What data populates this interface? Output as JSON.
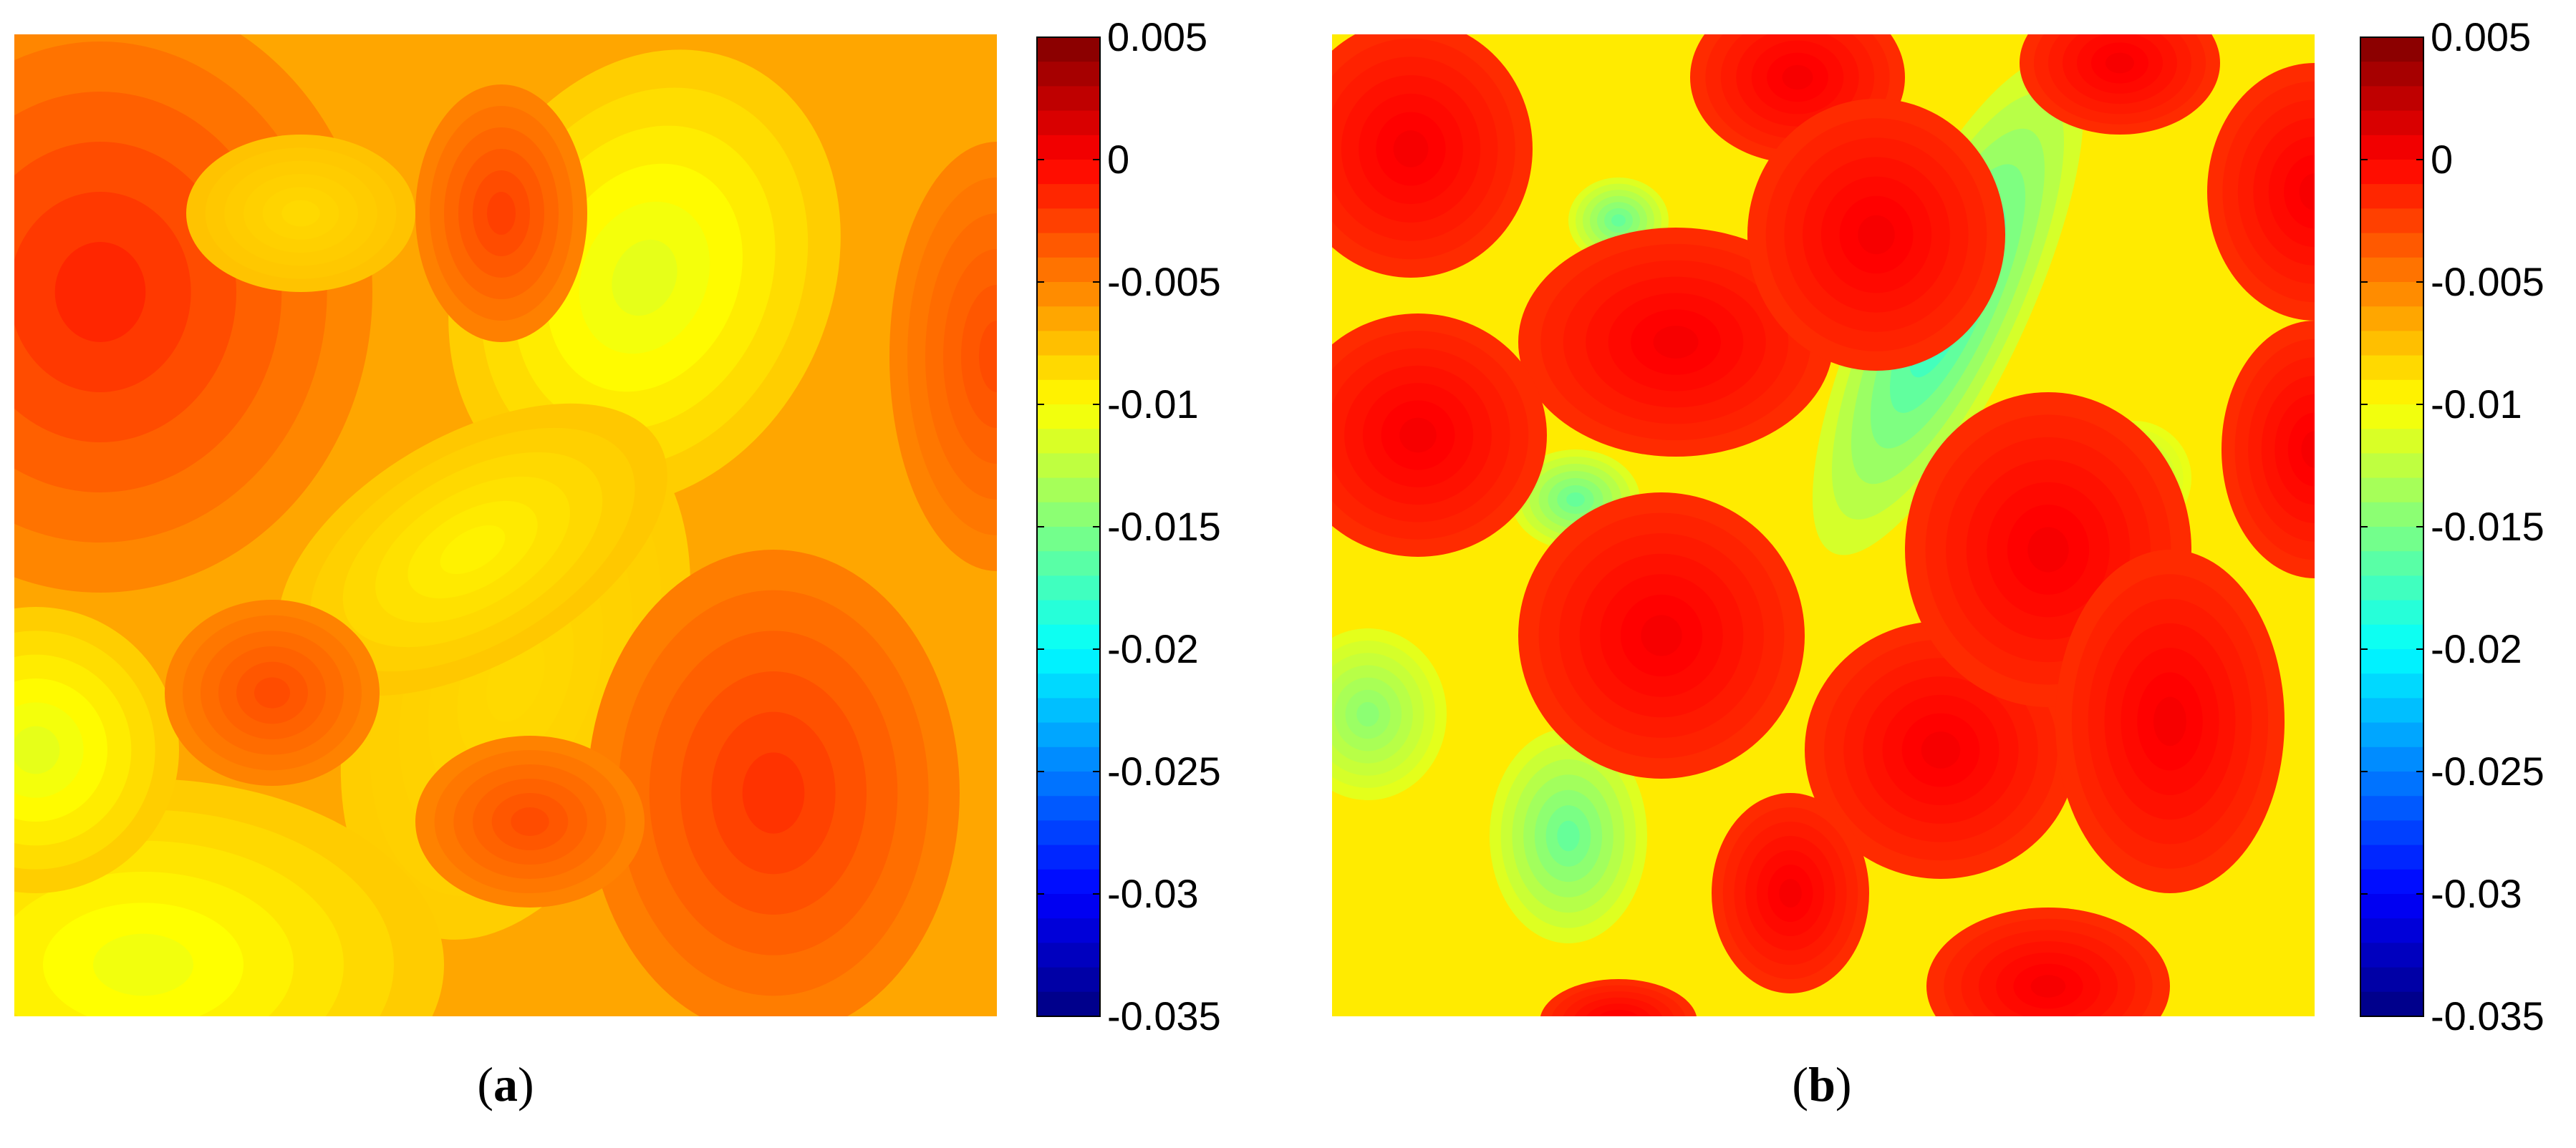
{
  "chart_data": [
    {
      "type": "heatmap",
      "panel_label": "a",
      "colorbar": {
        "min": -0.035,
        "max": 0.005,
        "ticks": [
          "0.005",
          "0",
          "-0.005",
          "-0.01",
          "-0.015",
          "-0.02",
          "-0.025",
          "-0.03",
          "-0.035"
        ],
        "tick_values": [
          0.005,
          0,
          -0.005,
          -0.01,
          -0.015,
          -0.02,
          -0.025,
          -0.03,
          -0.035
        ],
        "colormap": "jet",
        "levels": 40
      },
      "value_range": [
        -0.0115,
        0.0005
      ]
    },
    {
      "type": "heatmap",
      "panel_label": "b",
      "colorbar": {
        "min": -0.035,
        "max": 0.005,
        "ticks": [
          "0.005",
          "0",
          "-0.005",
          "-0.01",
          "-0.015",
          "-0.02",
          "-0.025",
          "-0.03",
          "-0.035"
        ],
        "tick_values": [
          0.005,
          0,
          -0.005,
          -0.01,
          -0.015,
          -0.02,
          -0.025,
          -0.03,
          -0.035
        ],
        "colormap": "jet",
        "levels": 40
      },
      "value_range": [
        -0.0185,
        0.0005
      ]
    }
  ],
  "labels": {
    "a": "a",
    "b": "b"
  }
}
